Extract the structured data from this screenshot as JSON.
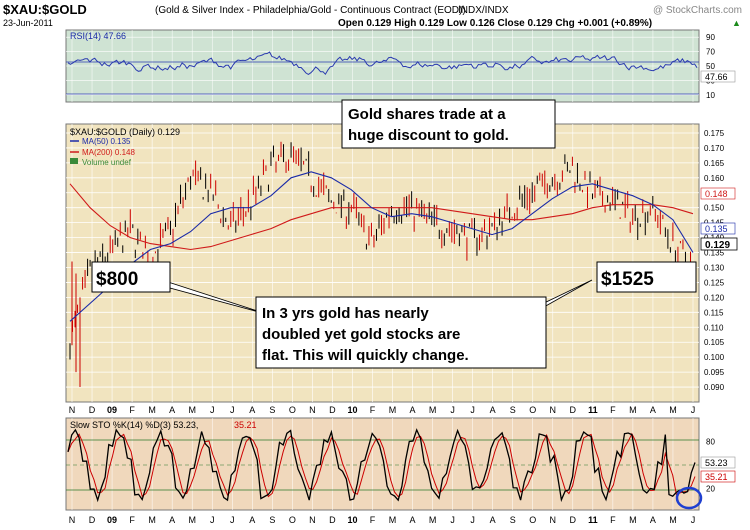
{
  "header": {
    "symbol": "$XAU:$GOLD",
    "description": "(Gold & Silver Index - Philadelphia/Gold - Continuous Contract (EOD))",
    "exchange": "INDX/INDX",
    "watermark": "@ StockCharts.com",
    "date": "23-Jun-2011",
    "quote": "Open 0.129  High 0.129  Low 0.126  Close 0.129  Chg +0.001 (+0.89%)",
    "quote_arrow": "▲"
  },
  "colors": {
    "rsi_bg": "#cfe3d3",
    "main_bg": "#f1e4bf",
    "sto_bg": "#f0d8bc",
    "price": "#000000",
    "price_down": "#cc0000",
    "ma50": "#1a2aa8",
    "ma200": "#d01a1a",
    "rsi_line": "#2a3ab0",
    "sto_k": "#000000",
    "sto_d": "#cc0000",
    "grid": "#ffffff",
    "annotation_circle": "#1f3fd0"
  },
  "rsi_panel": {
    "label": "RSI(14) 47.66",
    "current": "47.66",
    "ticks": [
      "90",
      "70",
      "50",
      "30",
      "10"
    ]
  },
  "main_panel": {
    "title": "$XAU:$GOLD (Daily) 0.129",
    "ma50_label": "MA(50) 0.135",
    "ma200_label": "MA(200) 0.148",
    "volume_label": "Volume undef",
    "price_ticks": [
      "0.175",
      "0.170",
      "0.165",
      "0.160",
      "0.155",
      "0.150",
      "0.145",
      "0.140",
      "0.135",
      "0.130",
      "0.125",
      "0.120",
      "0.115",
      "0.110",
      "0.105",
      "0.100",
      "0.095",
      "0.090"
    ],
    "ma200_value": "0.148",
    "ma50_value": "0.135",
    "last_value": "0.129",
    "annotations": {
      "top_box": [
        "Gold shares trade at a",
        "huge discount to gold."
      ],
      "left_box": "$800",
      "right_box": "$1525",
      "middle_box": [
        "In 3 yrs gold has nearly",
        "doubled yet gold stocks are",
        "flat.  This will quickly change."
      ]
    }
  },
  "sto_panel": {
    "label_k": "Slow STO %K(14) %D(3) 53.23,",
    "label_d": "35.21",
    "k_value": "53.23",
    "d_value": "35.21",
    "ticks": [
      "80",
      "50",
      "20"
    ]
  },
  "x_axis": {
    "labels": [
      "N",
      "D",
      "09",
      "F",
      "M",
      "A",
      "M",
      "J",
      "J",
      "A",
      "S",
      "O",
      "N",
      "D",
      "10",
      "F",
      "M",
      "A",
      "M",
      "J",
      "J",
      "A",
      "S",
      "O",
      "N",
      "D",
      "11",
      "F",
      "M",
      "A",
      "M",
      "J"
    ]
  },
  "chart_data": {
    "type": "line",
    "title": "$XAU:$GOLD (Daily) 0.129",
    "x": [
      "2008-11",
      "2008-12",
      "2009-01",
      "2009-02",
      "2009-03",
      "2009-04",
      "2009-05",
      "2009-06",
      "2009-07",
      "2009-08",
      "2009-09",
      "2009-10",
      "2009-11",
      "2009-12",
      "2010-01",
      "2010-02",
      "2010-03",
      "2010-04",
      "2010-05",
      "2010-06",
      "2010-07",
      "2010-08",
      "2010-09",
      "2010-10",
      "2010-11",
      "2010-12",
      "2011-01",
      "2011-02",
      "2011-03",
      "2011-04",
      "2011-05",
      "2011-06"
    ],
    "ylim": [
      0.085,
      0.178
    ],
    "series": [
      {
        "name": "$XAU:$GOLD",
        "values": [
          0.105,
          0.128,
          0.135,
          0.142,
          0.133,
          0.142,
          0.16,
          0.155,
          0.143,
          0.152,
          0.163,
          0.168,
          0.16,
          0.152,
          0.15,
          0.138,
          0.15,
          0.15,
          0.145,
          0.143,
          0.14,
          0.143,
          0.15,
          0.155,
          0.16,
          0.163,
          0.154,
          0.152,
          0.147,
          0.15,
          0.138,
          0.129
        ]
      },
      {
        "name": "MA(50)",
        "values": [
          0.112,
          0.118,
          0.124,
          0.131,
          0.136,
          0.138,
          0.142,
          0.148,
          0.15,
          0.15,
          0.154,
          0.16,
          0.162,
          0.16,
          0.156,
          0.15,
          0.147,
          0.148,
          0.147,
          0.145,
          0.143,
          0.141,
          0.143,
          0.148,
          0.153,
          0.157,
          0.158,
          0.156,
          0.154,
          0.151,
          0.146,
          0.135
        ]
      },
      {
        "name": "MA(200)",
        "values": [
          0.158,
          0.15,
          0.144,
          0.14,
          0.138,
          0.137,
          0.136,
          0.137,
          0.139,
          0.141,
          0.143,
          0.146,
          0.148,
          0.15,
          0.15,
          0.15,
          0.15,
          0.15,
          0.15,
          0.149,
          0.148,
          0.147,
          0.146,
          0.146,
          0.147,
          0.148,
          0.15,
          0.151,
          0.151,
          0.151,
          0.15,
          0.148
        ]
      }
    ],
    "rsi": {
      "name": "RSI(14)",
      "last": 47.66,
      "ylim": [
        0,
        100
      ]
    },
    "stochastic": {
      "name": "Slow STO %K(14) %D(3)",
      "k_last": 53.23,
      "d_last": 35.21,
      "ylim": [
        0,
        100
      ]
    }
  }
}
